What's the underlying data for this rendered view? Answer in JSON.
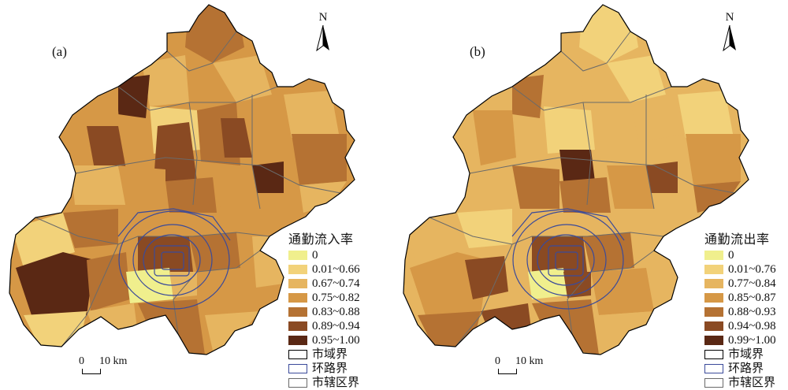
{
  "panels": [
    {
      "label": "(a)",
      "north": "N",
      "legend_title": "通勤流入率",
      "classes": [
        {
          "label": "0",
          "color": "#f0ef8d"
        },
        {
          "label": "0.01~0.66",
          "color": "#f2d27a"
        },
        {
          "label": "0.67~0.74",
          "color": "#e6b560"
        },
        {
          "label": "0.75~0.82",
          "color": "#d69846"
        },
        {
          "label": "0.83~0.88",
          "color": "#b57233"
        },
        {
          "label": "0.89~0.94",
          "color": "#8a4a23"
        },
        {
          "label": "0.95~1.00",
          "color": "#5a2814"
        }
      ],
      "boundaries": [
        {
          "label": "市域界",
          "color": "#000000"
        },
        {
          "label": "环路界",
          "color": "#3a4a9a"
        },
        {
          "label": "市辖区界",
          "color": "#6a6a6a"
        }
      ],
      "scale_zero": "0",
      "scale_label": "10 km"
    },
    {
      "label": "(b)",
      "north": "N",
      "legend_title": "通勤流出率",
      "classes": [
        {
          "label": "0",
          "color": "#f0ef8d"
        },
        {
          "label": "0.01~0.76",
          "color": "#f2d27a"
        },
        {
          "label": "0.77~0.84",
          "color": "#e6b560"
        },
        {
          "label": "0.85~0.87",
          "color": "#d69846"
        },
        {
          "label": "0.88~0.93",
          "color": "#b57233"
        },
        {
          "label": "0.94~0.98",
          "color": "#8a4a23"
        },
        {
          "label": "0.99~1.00",
          "color": "#5a2814"
        }
      ],
      "boundaries": [
        {
          "label": "市域界",
          "color": "#000000"
        },
        {
          "label": "环路界",
          "color": "#3a4a9a"
        },
        {
          "label": "市辖区界",
          "color": "#6a6a6a"
        }
      ],
      "scale_zero": "0",
      "scale_label": "10 km"
    }
  ]
}
